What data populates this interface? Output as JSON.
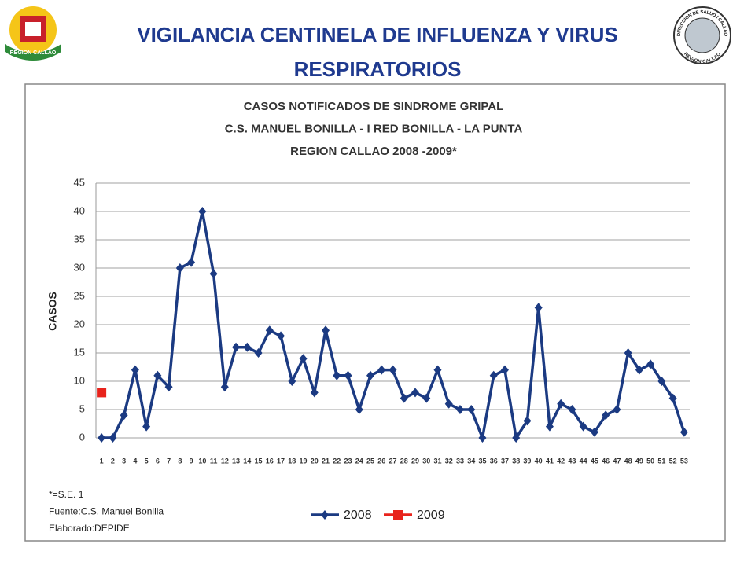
{
  "header": {
    "title": "VIGILANCIA CENTINELA DE INFLUENZA Y VIRUS RESPIRATORIOS",
    "left_logo": {
      "text": "REGION CALLAO"
    },
    "right_logo": {
      "ring_top": "DIRECCION DE SALUD I CALLAO",
      "ring_bottom": "REGION CALLAO"
    }
  },
  "chart_data": {
    "type": "line",
    "title": [
      "CASOS NOTIFICADOS DE SINDROME GRIPAL",
      "C.S. MANUEL BONILLA  - I RED BONILLA - LA PUNTA",
      "REGION CALLAO    2008 -2009*"
    ],
    "y_label": "CASOS",
    "categories": [
      "1",
      "2",
      "3",
      "4",
      "5",
      "6",
      "7",
      "8",
      "9",
      "10",
      "11",
      "12",
      "13",
      "14",
      "15",
      "16",
      "17",
      "18",
      "19",
      "20",
      "21",
      "22",
      "23",
      "24",
      "25",
      "26",
      "27",
      "28",
      "29",
      "30",
      "31",
      "32",
      "33",
      "34",
      "35",
      "36",
      "37",
      "38",
      "39",
      "40",
      "41",
      "42",
      "43",
      "44",
      "45",
      "46",
      "47",
      "48",
      "49",
      "50",
      "51",
      "52",
      "53"
    ],
    "series": [
      {
        "name": "2008",
        "color": "#1b3a82",
        "marker": "diamond",
        "values": [
          0,
          0,
          4,
          12,
          2,
          11,
          9,
          30,
          31,
          40,
          29,
          9,
          16,
          16,
          15,
          19,
          18,
          10,
          14,
          8,
          19,
          11,
          11,
          5,
          11,
          12,
          12,
          7,
          8,
          7,
          12,
          6,
          5,
          5,
          0,
          11,
          12,
          0,
          3,
          23,
          2,
          6,
          5,
          2,
          1,
          4,
          5,
          15,
          12,
          13,
          10,
          7,
          1
        ]
      },
      {
        "name": "2009",
        "color": "#e8231c",
        "marker": "square",
        "values": [
          8,
          null,
          null,
          null,
          null,
          null,
          null,
          null,
          null,
          null,
          null,
          null,
          null,
          null,
          null,
          null,
          null,
          null,
          null,
          null,
          null,
          null,
          null,
          null,
          null,
          null,
          null,
          null,
          null,
          null,
          null,
          null,
          null,
          null,
          null,
          null,
          null,
          null,
          null,
          null,
          null,
          null,
          null,
          null,
          null,
          null,
          null,
          null,
          null,
          null,
          null,
          null,
          null
        ]
      }
    ],
    "ylim": [
      0,
      45
    ],
    "yticks": [
      0,
      5,
      10,
      15,
      20,
      25,
      30,
      35,
      40,
      45
    ],
    "grid": true,
    "legend": "bottom",
    "notes": [
      "*=S.E. 1",
      "Fuente:C.S. Manuel Bonilla",
      "Elaborado:DEPIDE"
    ]
  }
}
